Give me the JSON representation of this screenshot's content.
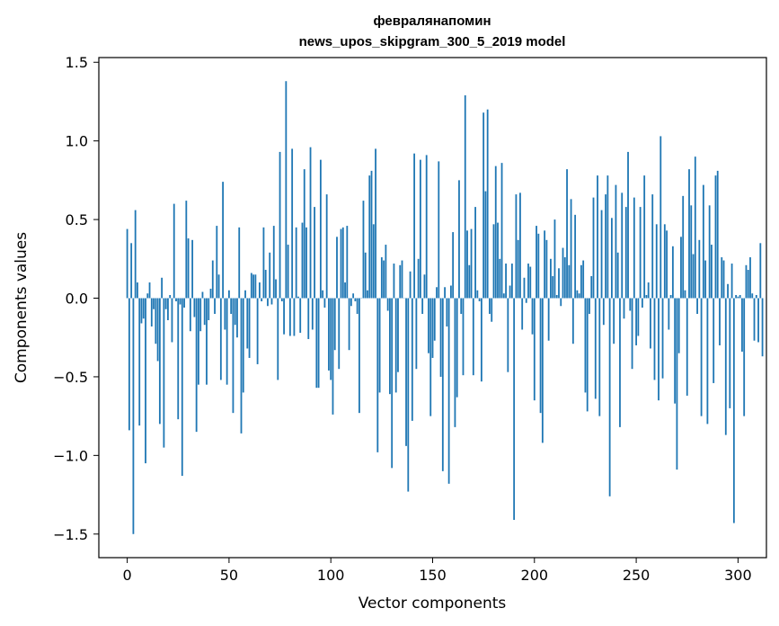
{
  "chart_data": {
    "type": "bar",
    "title": "февралянапомин",
    "subtitle": "news_upos_skipgram_300_5_2019 model",
    "xlabel": "Vector components",
    "ylabel": "Components values",
    "xlim": [
      -13.95,
      313.95
    ],
    "ylim": [
      -1.65,
      1.53
    ],
    "xticks": [
      0,
      50,
      100,
      150,
      200,
      250,
      300
    ],
    "yticks": [
      -1.5,
      -1.0,
      -0.5,
      0.0,
      0.5,
      1.0,
      1.5
    ],
    "xtick_labels": [
      "0",
      "50",
      "100",
      "150",
      "200",
      "250",
      "300"
    ],
    "ytick_labels": [
      "−1.5",
      "−1.0",
      "−0.5",
      "0.0",
      "0.5",
      "1.0",
      "1.5"
    ],
    "bar_color": "#1f77b4",
    "values": [
      0.44,
      -0.84,
      0.35,
      -1.5,
      0.56,
      0.1,
      -0.81,
      -0.16,
      -0.13,
      -1.05,
      0.03,
      0.1,
      -0.18,
      -0.07,
      -0.29,
      -0.4,
      -0.8,
      0.13,
      -0.95,
      -0.07,
      -0.14,
      0.02,
      -0.28,
      0.6,
      -0.02,
      -0.77,
      -0.04,
      -1.13,
      -0.06,
      0.62,
      0.38,
      -0.21,
      0.37,
      -0.12,
      -0.85,
      -0.55,
      -0.21,
      0.04,
      -0.17,
      -0.55,
      -0.14,
      0.06,
      0.24,
      -0.1,
      0.46,
      0.15,
      -0.52,
      0.74,
      -0.2,
      -0.55,
      0.05,
      -0.1,
      -0.73,
      -0.17,
      -0.25,
      0.45,
      -0.86,
      -0.6,
      0.05,
      -0.32,
      -0.38,
      0.16,
      0.15,
      0.15,
      -0.42,
      0.1,
      -0.02,
      0.45,
      0.18,
      -0.05,
      0.29,
      -0.04,
      0.46,
      0.12,
      -0.52,
      0.93,
      -0.02,
      -0.23,
      1.38,
      0.34,
      -0.24,
      0.95,
      -0.24,
      0.45,
      0.01,
      -0.22,
      0.48,
      0.82,
      0.45,
      -0.26,
      0.96,
      -0.2,
      0.58,
      -0.57,
      -0.57,
      0.88,
      0.05,
      -0.06,
      0.66,
      -0.46,
      -0.52,
      -0.74,
      -0.33,
      0.39,
      -0.45,
      0.44,
      0.45,
      0.1,
      0.46,
      -0.33,
      -0.05,
      0.03,
      -0.02,
      -0.1,
      -0.73,
      0.0,
      0.62,
      0.29,
      0.05,
      0.78,
      0.81,
      0.47,
      0.95,
      -0.98,
      -0.6,
      0.26,
      0.24,
      0.34,
      -0.08,
      -0.61,
      -1.08,
      0.22,
      -0.6,
      -0.47,
      0.21,
      0.24,
      0.0,
      -0.94,
      -1.23,
      0.17,
      -0.78,
      0.92,
      -0.45,
      0.25,
      0.88,
      -0.1,
      0.15,
      0.91,
      -0.35,
      -0.75,
      -0.38,
      -0.27,
      0.07,
      0.87,
      -0.5,
      -1.1,
      0.07,
      -0.18,
      -1.18,
      0.08,
      0.42,
      -0.82,
      -0.63,
      0.75,
      -0.1,
      -0.49,
      1.29,
      0.43,
      0.21,
      0.44,
      -0.49,
      0.58,
      0.05,
      -0.02,
      -0.53,
      1.18,
      0.68,
      1.2,
      -0.1,
      -0.15,
      0.47,
      0.84,
      0.48,
      0.25,
      0.86,
      0.03,
      0.22,
      -0.47,
      0.08,
      0.22,
      -1.41,
      0.66,
      0.37,
      0.67,
      -0.2,
      0.13,
      -0.03,
      0.22,
      0.2,
      -0.23,
      -0.65,
      0.46,
      0.41,
      -0.73,
      -0.92,
      0.43,
      0.37,
      -0.27,
      0.25,
      0.14,
      0.5,
      0.02,
      0.19,
      -0.05,
      0.32,
      0.26,
      0.82,
      0.21,
      0.63,
      -0.29,
      0.53,
      0.05,
      0.03,
      0.21,
      0.24,
      -0.6,
      -0.72,
      -0.1,
      0.14,
      0.64,
      -0.64,
      0.78,
      -0.75,
      0.56,
      -0.17,
      0.66,
      0.78,
      -1.26,
      0.51,
      -0.29,
      0.72,
      0.29,
      -0.82,
      0.67,
      -0.13,
      0.58,
      0.93,
      -0.08,
      -0.45,
      0.64,
      -0.3,
      -0.24,
      0.58,
      -0.06,
      0.78,
      0.02,
      0.1,
      -0.32,
      0.66,
      -0.52,
      0.47,
      -0.65,
      1.03,
      -0.51,
      0.47,
      0.43,
      -0.2,
      0.02,
      0.33,
      -0.67,
      -1.09,
      -0.35,
      0.39,
      0.65,
      0.05,
      -0.62,
      0.82,
      0.59,
      0.28,
      0.9,
      -0.1,
      0.37,
      -0.75,
      0.72,
      0.24,
      -0.8,
      0.59,
      0.34,
      -0.54,
      0.78,
      0.81,
      -0.3,
      0.26,
      0.24,
      -0.87,
      0.09,
      -0.7,
      0.22,
      -1.43,
      0.02,
      0.01,
      0.02,
      -0.34,
      -0.75,
      0.21,
      0.18,
      0.26,
      0.03,
      -0.27,
      0.02,
      -0.28,
      0.35,
      -0.37
    ]
  }
}
